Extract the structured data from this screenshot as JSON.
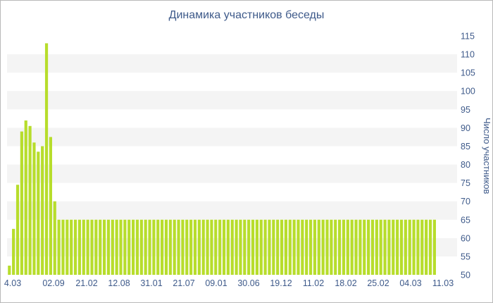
{
  "chart_data": {
    "type": "bar",
    "title": "Динамика участников беседы",
    "xlabel": "",
    "ylabel": "Число участников",
    "ylim": [
      50,
      115
    ],
    "y_ticks": [
      50,
      55,
      60,
      65,
      70,
      75,
      80,
      85,
      90,
      95,
      100,
      105,
      110,
      115
    ],
    "x_tick_labels": [
      "4.03",
      "02.09",
      "21.02",
      "12.08",
      "31.01",
      "21.07",
      "09.01",
      "30.06",
      "19.12",
      "11.02",
      "18.02",
      "25.02",
      "04.03",
      "11.03"
    ],
    "bar_color": "#b7dd2c",
    "band_color": "#f4f4f4",
    "values": [
      52.5,
      62.5,
      74.5,
      89,
      92,
      90.5,
      86,
      83.5,
      85,
      113,
      87.5,
      70,
      65,
      65,
      65,
      65,
      65,
      65,
      65,
      65,
      65,
      65,
      65,
      65,
      65,
      65,
      65,
      65,
      65,
      65,
      65,
      65,
      65,
      65,
      65,
      65,
      65,
      65,
      65,
      65,
      65,
      65,
      65,
      65,
      65,
      65,
      65,
      65,
      65,
      65,
      65,
      65,
      65,
      65,
      65,
      65,
      65,
      65,
      65,
      65,
      65,
      65,
      65,
      65,
      65,
      65,
      65,
      65,
      65,
      65,
      65,
      65,
      65,
      65,
      65,
      65,
      65,
      65,
      65,
      65,
      65,
      65,
      65,
      65,
      65,
      65,
      65,
      65,
      65,
      65,
      65,
      65,
      65,
      65,
      65,
      65,
      65,
      65,
      65,
      65,
      65,
      65,
      65,
      65
    ]
  }
}
